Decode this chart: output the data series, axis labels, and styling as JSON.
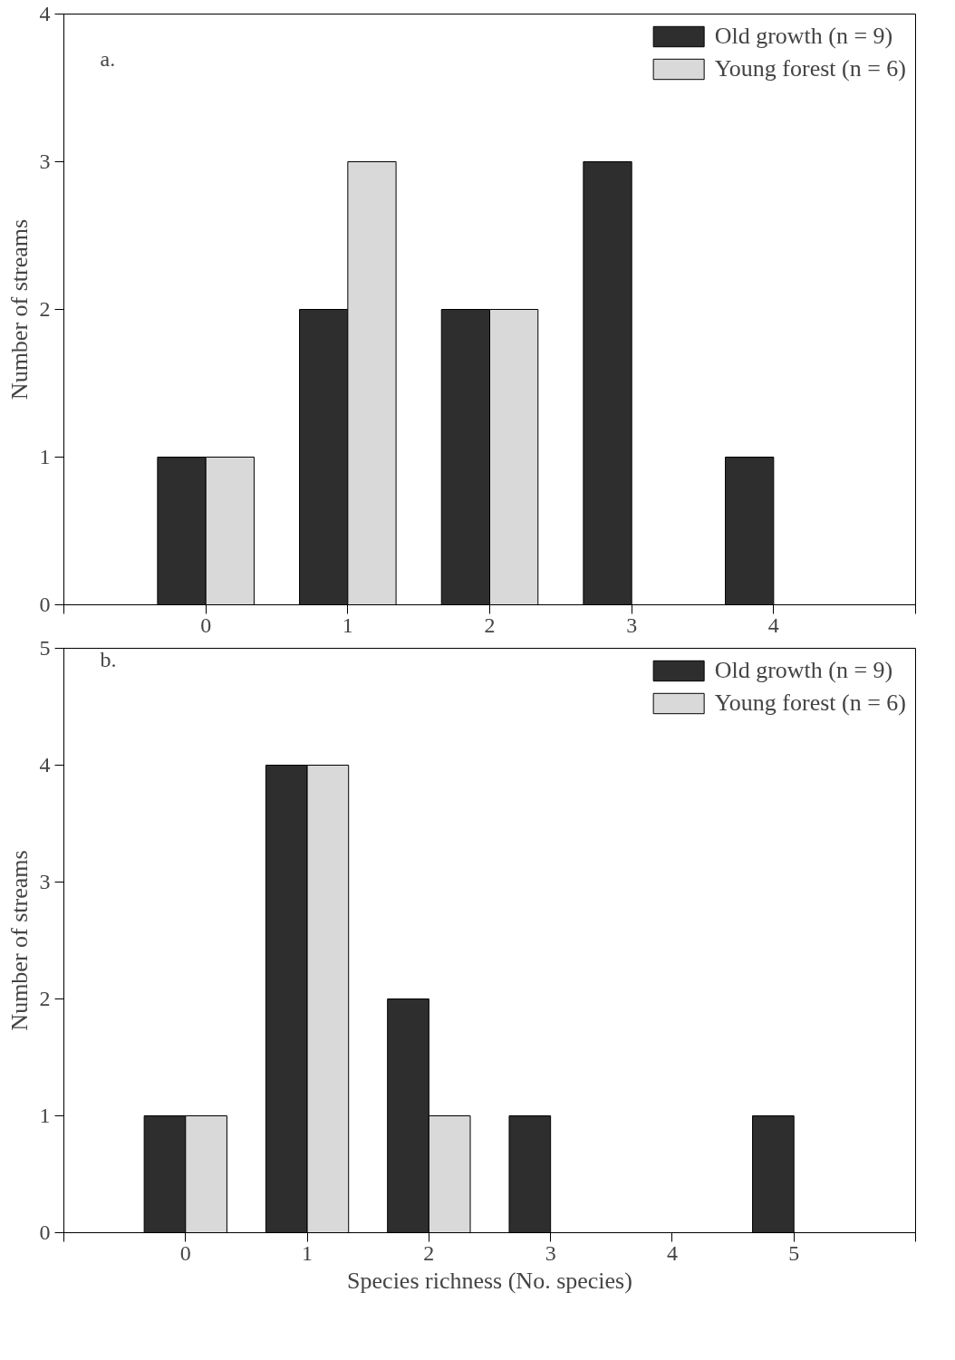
{
  "chart_data": [
    {
      "type": "bar",
      "ylabel": "Number of streams",
      "annotations": [
        "a."
      ],
      "x": [
        0,
        1,
        2,
        3,
        4
      ],
      "xlim": [
        -1,
        5
      ],
      "xticks": [
        {
          "value": -1,
          "label": null
        },
        0,
        1,
        2,
        3,
        4,
        {
          "value": 5,
          "label": null
        }
      ],
      "ylim": [
        0,
        4
      ],
      "yticks": [
        0,
        1,
        2,
        3,
        4
      ],
      "legend": "top right",
      "series": [
        {
          "name": "Old growth (n = 9)",
          "color": "#2e2e2e",
          "values": [
            1,
            2,
            2,
            3,
            1
          ]
        },
        {
          "name": "Young forest (n = 6)",
          "color": "#d9d9d9",
          "values": [
            1,
            3,
            2,
            null,
            null
          ]
        }
      ]
    },
    {
      "type": "bar",
      "ylabel": "Number of streams",
      "xlabel": "Species richness (No. species)",
      "annotations": [
        "b."
      ],
      "x": [
        0,
        1,
        2,
        3,
        4,
        5
      ],
      "xlim": [
        -1,
        6
      ],
      "xticks": [
        {
          "value": -1,
          "label": null
        },
        0,
        1,
        2,
        3,
        4,
        5,
        {
          "value": 6,
          "label": null
        }
      ],
      "ylim": [
        0,
        5
      ],
      "yticks": [
        0,
        1,
        2,
        3,
        4,
        5
      ],
      "legend": "top right",
      "series": [
        {
          "name": "Old growth (n = 9)",
          "color": "#2e2e2e",
          "values": [
            1,
            4,
            2,
            1,
            null,
            1
          ]
        },
        {
          "name": "Young forest (n = 6)",
          "color": "#d9d9d9",
          "values": [
            1,
            4,
            1,
            null,
            null,
            null
          ]
        }
      ]
    }
  ]
}
